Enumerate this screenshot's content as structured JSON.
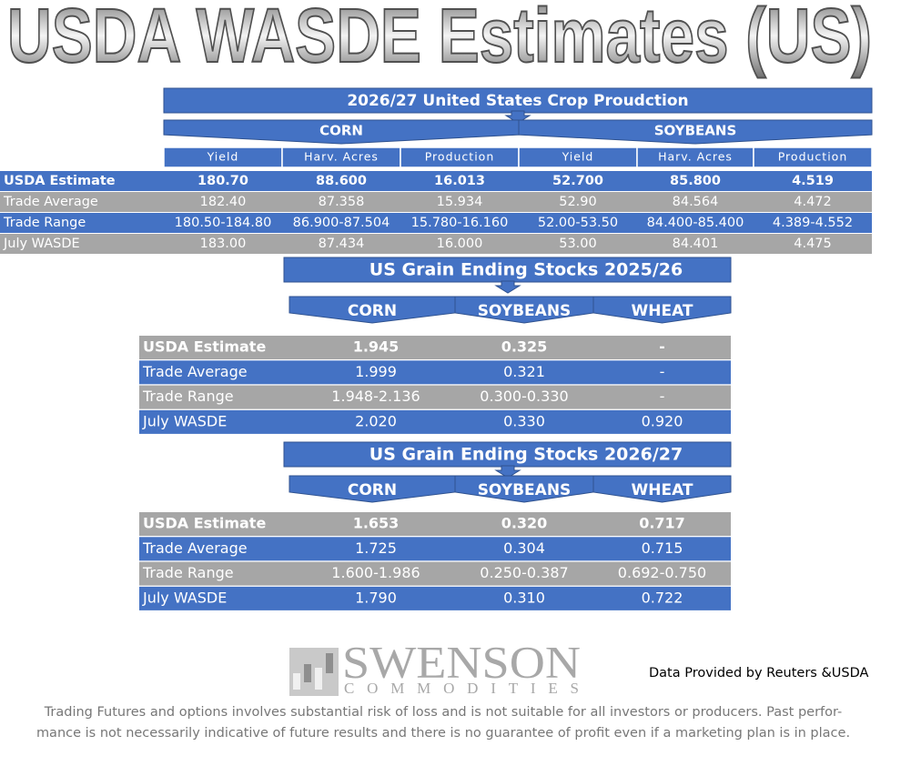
{
  "title": "USDA WASDE Estimates (US)",
  "production": {
    "title": "2026/27 United States Crop Proudction",
    "groups": [
      "CORN",
      "SOYBEANS"
    ],
    "columns": [
      "Yield",
      "Harv. Acres",
      "Production",
      "Yield",
      "Harv. Acres",
      "Production"
    ],
    "rows": [
      [
        "USDA Estimate",
        "180.70",
        "88.600",
        "16.013",
        "52.700",
        "85.800",
        "4.519"
      ],
      [
        "Trade Average",
        "182.40",
        "87.358",
        "15.934",
        "52.90",
        "84.564",
        "4.472"
      ],
      [
        "Trade Range",
        "180.50-184.80",
        "86.900-87.504",
        "15.780-16.160",
        "52.00-53.50",
        "84.400-85.400",
        "4.389-4.552"
      ],
      [
        "July WASDE",
        "183.00",
        "87.434",
        "16.000",
        "53.00",
        "84.401",
        "4.475"
      ]
    ]
  },
  "stocks": [
    {
      "title": "US Grain Ending Stocks 2025/26",
      "columns": [
        "CORN",
        "SOYBEANS",
        "WHEAT"
      ],
      "rows": [
        [
          "USDA Estimate",
          "1.945",
          "0.325",
          "-"
        ],
        [
          "Trade Average",
          "1.999",
          "0.321",
          "-"
        ],
        [
          "Trade Range",
          "1.948-2.136",
          "0.300-0.330",
          "-"
        ],
        [
          "July WASDE",
          "2.020",
          "0.330",
          "0.920"
        ]
      ]
    },
    {
      "title": "US Grain Ending Stocks 2026/27",
      "columns": [
        "CORN",
        "SOYBEANS",
        "WHEAT"
      ],
      "rows": [
        [
          "USDA Estimate",
          "1.653",
          "0.320",
          "0.717"
        ],
        [
          "Trade Average",
          "1.725",
          "0.304",
          "0.715"
        ],
        [
          "Trade Range",
          "1.600-1.986",
          "0.250-0.387",
          "0.692-0.750"
        ],
        [
          "July WASDE",
          "1.790",
          "0.310",
          "0.722"
        ]
      ]
    }
  ],
  "logo": {
    "name": "SWENSON",
    "subtitle": "COMMODITIES"
  },
  "credit": "Data Provided by Reuters &USDA",
  "disclaimer": [
    "Trading Futures and options involves substantial risk of loss and is not suitable for all investors or producers. Past perfor-",
    "mance is not necessarily indicative of future results and there is no guarantee of profit even if a marketing plan is in place."
  ]
}
